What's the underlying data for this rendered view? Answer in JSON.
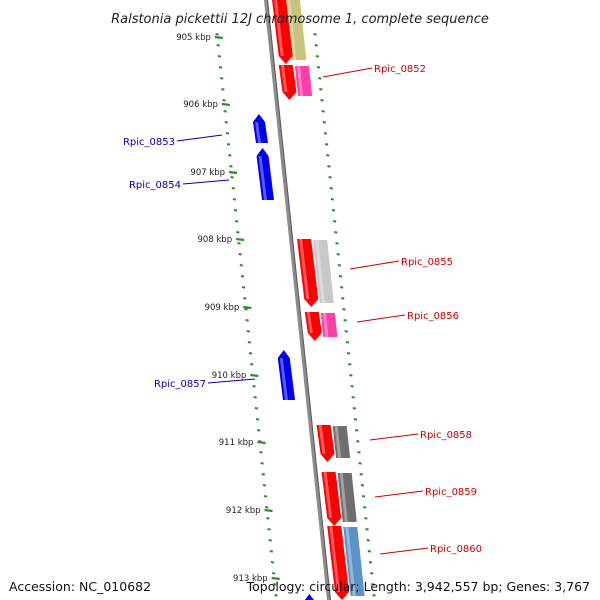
{
  "title": "Ralstonia pickettii 12J chromosome 1, complete sequence",
  "accession_text": "Accession: NC_010682",
  "stats_text": "Topology: circular; Length: 3,942,557 bp; Genes: 3,767",
  "colors": {
    "backbone": "#8c8c8c",
    "ticks": "#2e8b2e",
    "label_reverse": "#cc0000",
    "label_forward": "#0000aa",
    "cds_red": "#ff0000",
    "cds_blue": "#0000ee",
    "olive": "#c8c47e",
    "pink": "#ff3fa8",
    "light_gray": "#c8c8c8",
    "dark_gray": "#6e6e6e",
    "steel_blue": "#5b93c8"
  },
  "kbp_ticks": [
    "905 kbp",
    "906 kbp",
    "907 kbp",
    "908 kbp",
    "909 kbp",
    "910 kbp",
    "911 kbp",
    "912 kbp",
    "913 kbp"
  ],
  "genes": [
    {
      "label": "Rpic_0852",
      "strand": "reverse",
      "cog_color": "pink"
    },
    {
      "label": "Rpic_0853",
      "strand": "forward",
      "cog_color": ""
    },
    {
      "label": "Rpic_0854",
      "strand": "forward",
      "cog_color": ""
    },
    {
      "label": "Rpic_0855",
      "strand": "reverse",
      "cog_color": "light_gray"
    },
    {
      "label": "Rpic_0856",
      "strand": "reverse",
      "cog_color": "pink"
    },
    {
      "label": "Rpic_0857",
      "strand": "forward",
      "cog_color": ""
    },
    {
      "label": "Rpic_0858",
      "strand": "reverse",
      "cog_color": "dark_gray"
    },
    {
      "label": "Rpic_0859",
      "strand": "reverse",
      "cog_color": "dark_gray"
    },
    {
      "label": "Rpic_0860",
      "strand": "reverse",
      "cog_color": "steel_blue"
    }
  ]
}
